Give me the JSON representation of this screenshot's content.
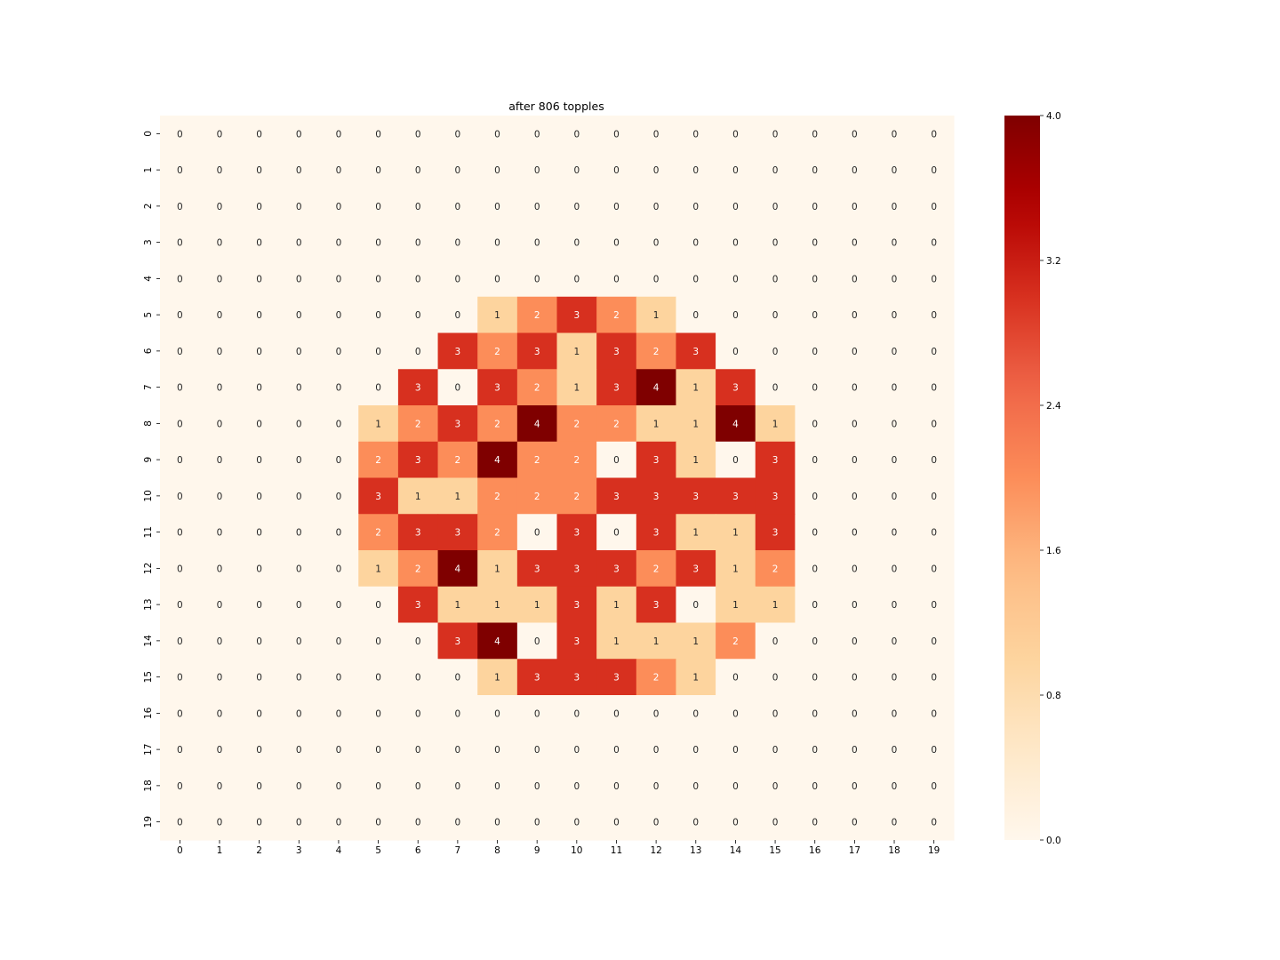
{
  "chart_data": {
    "type": "heatmap",
    "title": "after 806 topples",
    "xlabel": "",
    "ylabel": "",
    "x_ticks": [
      "0",
      "1",
      "2",
      "3",
      "4",
      "5",
      "6",
      "7",
      "8",
      "9",
      "10",
      "11",
      "12",
      "13",
      "14",
      "15",
      "16",
      "17",
      "18",
      "19"
    ],
    "y_ticks": [
      "0",
      "1",
      "2",
      "3",
      "4",
      "5",
      "6",
      "7",
      "8",
      "9",
      "10",
      "11",
      "12",
      "13",
      "14",
      "15",
      "16",
      "17",
      "18",
      "19"
    ],
    "values": [
      [
        0,
        0,
        0,
        0,
        0,
        0,
        0,
        0,
        0,
        0,
        0,
        0,
        0,
        0,
        0,
        0,
        0,
        0,
        0,
        0
      ],
      [
        0,
        0,
        0,
        0,
        0,
        0,
        0,
        0,
        0,
        0,
        0,
        0,
        0,
        0,
        0,
        0,
        0,
        0,
        0,
        0
      ],
      [
        0,
        0,
        0,
        0,
        0,
        0,
        0,
        0,
        0,
        0,
        0,
        0,
        0,
        0,
        0,
        0,
        0,
        0,
        0,
        0
      ],
      [
        0,
        0,
        0,
        0,
        0,
        0,
        0,
        0,
        0,
        0,
        0,
        0,
        0,
        0,
        0,
        0,
        0,
        0,
        0,
        0
      ],
      [
        0,
        0,
        0,
        0,
        0,
        0,
        0,
        0,
        0,
        0,
        0,
        0,
        0,
        0,
        0,
        0,
        0,
        0,
        0,
        0
      ],
      [
        0,
        0,
        0,
        0,
        0,
        0,
        0,
        0,
        1,
        2,
        3,
        2,
        1,
        0,
        0,
        0,
        0,
        0,
        0,
        0
      ],
      [
        0,
        0,
        0,
        0,
        0,
        0,
        0,
        3,
        2,
        3,
        1,
        3,
        2,
        3,
        0,
        0,
        0,
        0,
        0,
        0
      ],
      [
        0,
        0,
        0,
        0,
        0,
        0,
        3,
        0,
        3,
        2,
        1,
        3,
        4,
        1,
        3,
        0,
        0,
        0,
        0,
        0
      ],
      [
        0,
        0,
        0,
        0,
        0,
        1,
        2,
        3,
        2,
        4,
        2,
        2,
        1,
        1,
        4,
        1,
        0,
        0,
        0,
        0
      ],
      [
        0,
        0,
        0,
        0,
        0,
        2,
        3,
        2,
        4,
        2,
        2,
        0,
        3,
        1,
        0,
        3,
        0,
        0,
        0,
        0
      ],
      [
        0,
        0,
        0,
        0,
        0,
        3,
        1,
        1,
        2,
        2,
        2,
        3,
        3,
        3,
        3,
        3,
        0,
        0,
        0,
        0
      ],
      [
        0,
        0,
        0,
        0,
        0,
        2,
        3,
        3,
        2,
        0,
        3,
        0,
        3,
        1,
        1,
        3,
        0,
        0,
        0,
        0
      ],
      [
        0,
        0,
        0,
        0,
        0,
        1,
        2,
        4,
        1,
        3,
        3,
        3,
        2,
        3,
        1,
        2,
        0,
        0,
        0,
        0
      ],
      [
        0,
        0,
        0,
        0,
        0,
        0,
        3,
        1,
        1,
        1,
        3,
        1,
        3,
        0,
        1,
        1,
        0,
        0,
        0,
        0
      ],
      [
        0,
        0,
        0,
        0,
        0,
        0,
        0,
        3,
        4,
        0,
        3,
        1,
        1,
        1,
        2,
        0,
        0,
        0,
        0,
        0
      ],
      [
        0,
        0,
        0,
        0,
        0,
        0,
        0,
        0,
        1,
        3,
        3,
        3,
        2,
        1,
        0,
        0,
        0,
        0,
        0,
        0
      ],
      [
        0,
        0,
        0,
        0,
        0,
        0,
        0,
        0,
        0,
        0,
        0,
        0,
        0,
        0,
        0,
        0,
        0,
        0,
        0,
        0
      ],
      [
        0,
        0,
        0,
        0,
        0,
        0,
        0,
        0,
        0,
        0,
        0,
        0,
        0,
        0,
        0,
        0,
        0,
        0,
        0,
        0
      ],
      [
        0,
        0,
        0,
        0,
        0,
        0,
        0,
        0,
        0,
        0,
        0,
        0,
        0,
        0,
        0,
        0,
        0,
        0,
        0,
        0
      ],
      [
        0,
        0,
        0,
        0,
        0,
        0,
        0,
        0,
        0,
        0,
        0,
        0,
        0,
        0,
        0,
        0,
        0,
        0,
        0,
        0
      ]
    ],
    "colormap": "OrRd",
    "value_range": [
      0,
      4
    ],
    "colorbar_ticks": [
      "0.0",
      "0.8",
      "1.6",
      "2.4",
      "3.2",
      "4.0"
    ],
    "colors": {
      "0": "#fff7ec",
      "1": "#fdd49e",
      "2": "#fc8d59",
      "3": "#d7301f",
      "4": "#7f0000"
    },
    "annotate": true,
    "grid": false
  }
}
